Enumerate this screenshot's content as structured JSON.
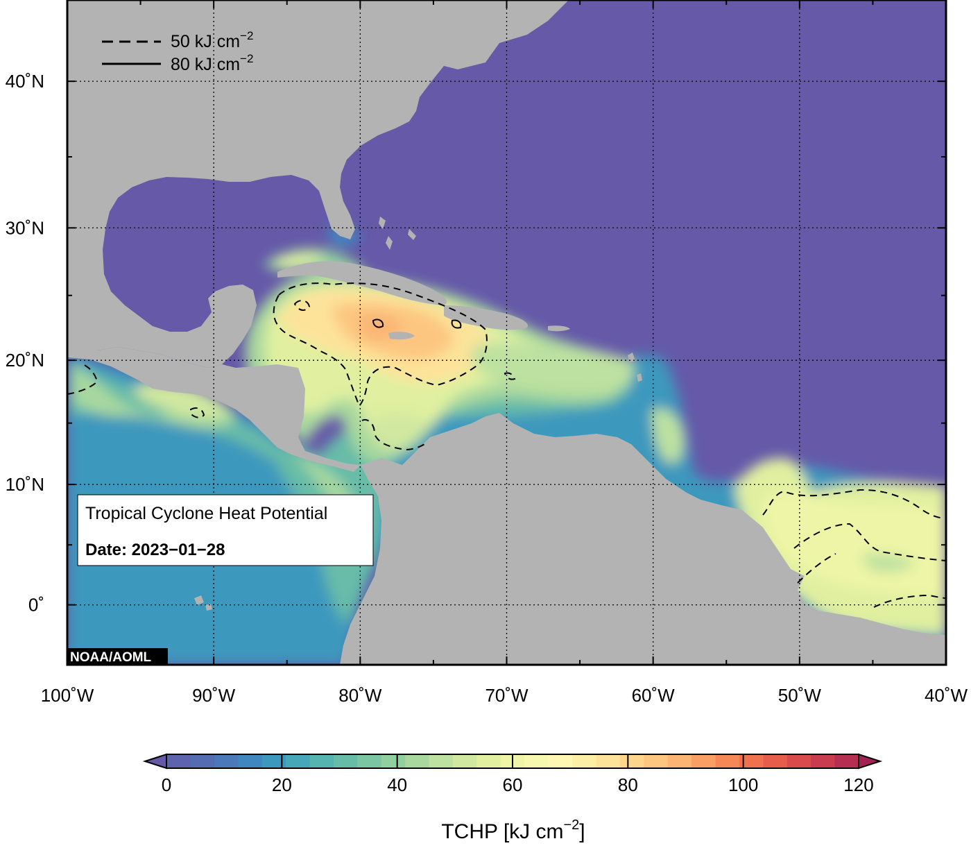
{
  "map": {
    "lon_range": [
      -100,
      -40
    ],
    "lat_range": [
      -5,
      45
    ],
    "colors": {
      "ocean_low": "#6559a8",
      "land": "#b3b3b3",
      "frame": "#000000",
      "grid": "#000000"
    },
    "lon_ticks": [
      {
        "lon": -100,
        "label": "100˚W"
      },
      {
        "lon": -90,
        "label": "90˚W"
      },
      {
        "lon": -80,
        "label": "80˚W"
      },
      {
        "lon": -70,
        "label": "70˚W"
      },
      {
        "lon": -60,
        "label": "60˚W"
      },
      {
        "lon": -50,
        "label": "50˚W"
      },
      {
        "lon": -40,
        "label": "40˚W"
      }
    ],
    "lat_ticks": [
      {
        "lat": 40,
        "label": "40˚N"
      },
      {
        "lat": 30,
        "label": "30˚N"
      },
      {
        "lat": 20,
        "label": "20˚N"
      },
      {
        "lat": 10,
        "label": "10˚N"
      },
      {
        "lat": 0,
        "label": "0˚"
      }
    ],
    "legend": {
      "line50": {
        "label": "50 kJ cm",
        "sup": "−2",
        "style": "dashed"
      },
      "line80": {
        "label": "80 kJ cm",
        "sup": "−2",
        "style": "solid"
      }
    },
    "info_box": {
      "title": "Tropical Cyclone Heat Potential",
      "date": "Date: 2023−01−28"
    },
    "credit": "NOAA/AOML"
  },
  "colorbar": {
    "min": 0,
    "max": 120,
    "tick_labels": [
      "0",
      "20",
      "40",
      "60",
      "80",
      "100",
      "120"
    ],
    "title_main": "TCHP [kJ cm",
    "title_sup": "−2",
    "title_end": "]",
    "colors": [
      "#6559a8",
      "#5d63ad",
      "#536cb2",
      "#4a78b8",
      "#3f87be",
      "#3d98bd",
      "#46a7b8",
      "#55b3b0",
      "#67bca8",
      "#7cc5a3",
      "#92cf9f",
      "#a8d89e",
      "#bde1a0",
      "#d0e8a0",
      "#e0f0a0",
      "#eef5a6",
      "#f7f8b0",
      "#fef7b4",
      "#fdeea6",
      "#fde39a",
      "#fdd58c",
      "#fcc680",
      "#fbb473",
      "#f99f65",
      "#f68858",
      "#f0714f",
      "#e65d4c",
      "#d94a4d",
      "#c93c4f",
      "#b62e51",
      "#a32253"
    ]
  }
}
